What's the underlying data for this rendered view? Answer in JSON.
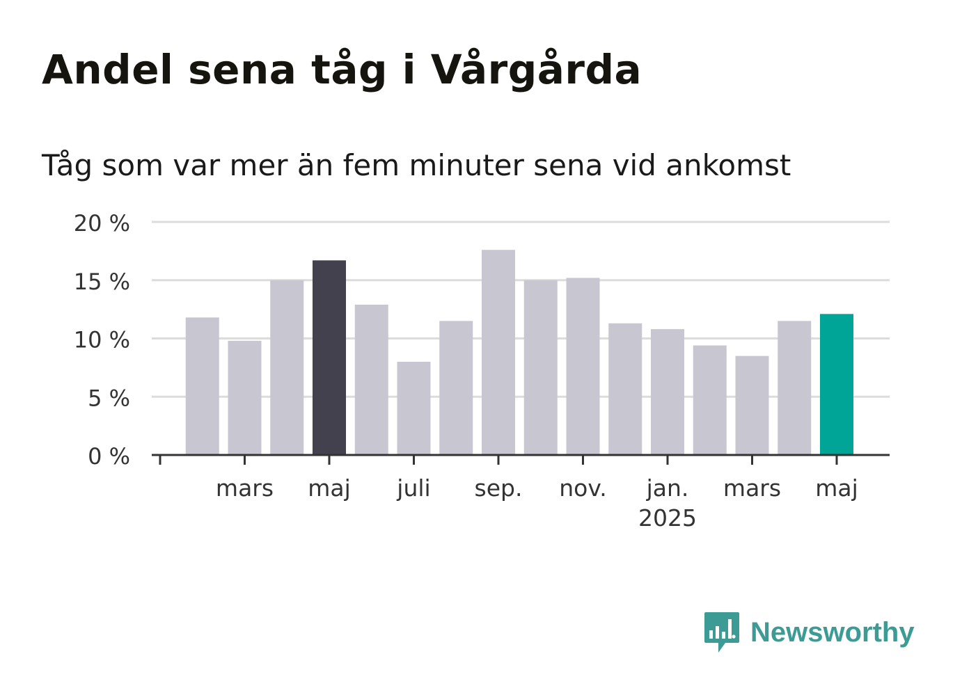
{
  "title": "Andel sena tåg i Vårgårda",
  "subtitle": "Tåg som var mer än fem minuter sena vid ankomst",
  "brand": {
    "name": "Newsworthy",
    "icon": "newsworthy-logo-icon",
    "color": "#3d9b96"
  },
  "chart_data": {
    "type": "bar",
    "unit": "%",
    "ylim": [
      0,
      20
    ],
    "yticks": [
      "0 %",
      "5 %",
      "10 %",
      "15 %",
      "20 %"
    ],
    "ytick_values": [
      0,
      5,
      10,
      15,
      20
    ],
    "grid": true,
    "colors": {
      "default": "#c8c7d1",
      "highlight": "#43414d",
      "latest": "#00a597"
    },
    "categories": [
      "2024-01",
      "2024-02",
      "2024-03",
      "2024-04",
      "2024-05",
      "2024-06",
      "2024-07",
      "2024-08",
      "2024-09",
      "2024-10",
      "2024-11",
      "2024-12",
      "2025-01",
      "2025-02",
      "2025-03",
      "2025-04",
      "2025-05"
    ],
    "values": [
      null,
      11.8,
      9.8,
      15.0,
      16.7,
      12.9,
      8.0,
      11.5,
      17.6,
      15.0,
      15.2,
      11.3,
      10.8,
      9.4,
      8.5,
      11.5,
      12.1
    ],
    "bar_colors": [
      "default",
      "default",
      "default",
      "default",
      "highlight",
      "default",
      "default",
      "default",
      "default",
      "default",
      "default",
      "default",
      "default",
      "default",
      "default",
      "default",
      "latest"
    ],
    "xtick_labels": [
      {
        "index": 0,
        "label": "",
        "sub": ""
      },
      {
        "index": 2,
        "label": "mars",
        "sub": ""
      },
      {
        "index": 4,
        "label": "maj",
        "sub": ""
      },
      {
        "index": 6,
        "label": "juli",
        "sub": ""
      },
      {
        "index": 8,
        "label": "sep.",
        "sub": ""
      },
      {
        "index": 10,
        "label": "nov.",
        "sub": ""
      },
      {
        "index": 12,
        "label": "jan.",
        "sub": "2025"
      },
      {
        "index": 14,
        "label": "mars",
        "sub": ""
      },
      {
        "index": 16,
        "label": "maj",
        "sub": ""
      }
    ]
  }
}
